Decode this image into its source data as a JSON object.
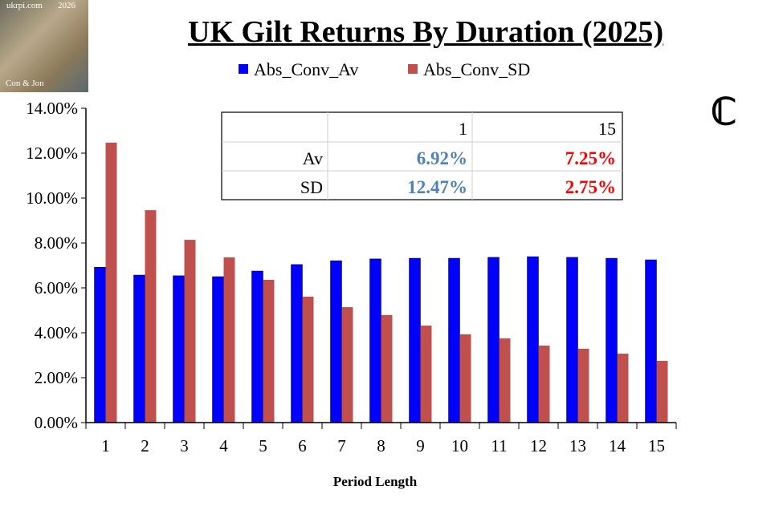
{
  "title": "UK Gilt Returns By Duration (2025)",
  "logo": {
    "site": "ukrpi.com",
    "year": "2026",
    "authors": "Con & Jon"
  },
  "corner_mark": "ℂ",
  "table": {
    "header": [
      "",
      "1",
      "15"
    ],
    "rows": [
      {
        "label": "Av",
        "v1": "6.92%",
        "v15": "7.25%"
      },
      {
        "label": "SD",
        "v1": "12.47%",
        "v15": "2.75%"
      }
    ],
    "colors": {
      "col1": "#4f81bd",
      "col15": "#ff0000"
    }
  },
  "chart_data": {
    "type": "bar",
    "title": "UK Gilt Returns By Duration (2025)",
    "xlabel": "Period Length",
    "ylabel": "",
    "ylim": [
      0,
      0.14
    ],
    "yticks": [
      "0.00%",
      "2.00%",
      "4.00%",
      "6.00%",
      "8.00%",
      "10.00%",
      "12.00%",
      "14.00%"
    ],
    "categories": [
      "1",
      "2",
      "3",
      "4",
      "5",
      "6",
      "7",
      "8",
      "9",
      "10",
      "11",
      "12",
      "13",
      "14",
      "15"
    ],
    "legend_position": "top",
    "grid": false,
    "series": [
      {
        "name": "Abs_Conv_Av",
        "color": "#0000ff",
        "values": [
          0.0692,
          0.0657,
          0.0654,
          0.065,
          0.0675,
          0.0704,
          0.0721,
          0.0729,
          0.0732,
          0.0732,
          0.0736,
          0.0739,
          0.0736,
          0.0732,
          0.0725
        ]
      },
      {
        "name": "Abs_Conv_SD",
        "color": "#c0504d",
        "values": [
          0.1247,
          0.0946,
          0.0814,
          0.0736,
          0.0636,
          0.0561,
          0.0514,
          0.0479,
          0.0432,
          0.0393,
          0.0375,
          0.0343,
          0.0329,
          0.0307,
          0.0275
        ]
      }
    ]
  }
}
